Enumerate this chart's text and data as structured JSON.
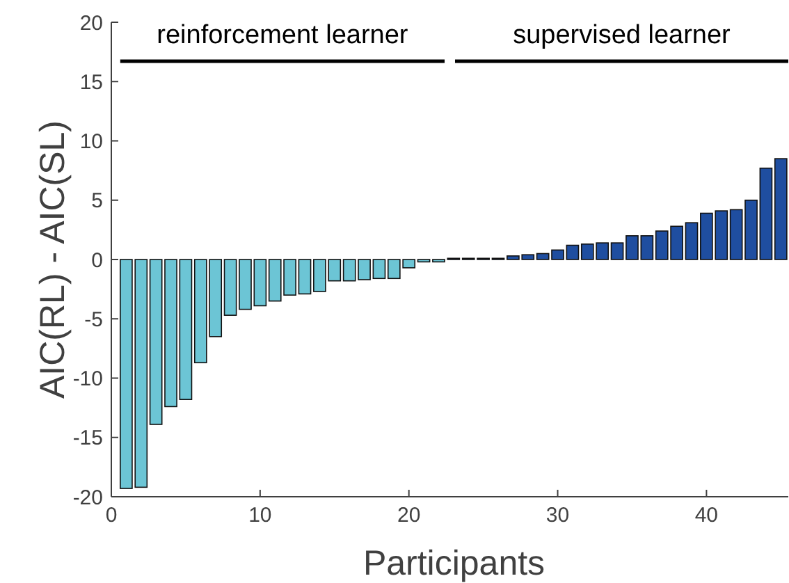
{
  "chart_data": {
    "type": "bar",
    "xlabel": "Participants",
    "ylabel": "AIC(RL) - AIC(SL)",
    "x": [
      1,
      2,
      3,
      4,
      5,
      6,
      7,
      8,
      9,
      10,
      11,
      12,
      13,
      14,
      15,
      16,
      17,
      18,
      19,
      20,
      21,
      22,
      23,
      24,
      25,
      26,
      27,
      28,
      29,
      30,
      31,
      32,
      33,
      34,
      35,
      36,
      37,
      38,
      39,
      40,
      41,
      42,
      43,
      44,
      45
    ],
    "values": [
      -19.3,
      -19.2,
      -13.9,
      -12.4,
      -11.8,
      -8.7,
      -6.5,
      -4.7,
      -4.2,
      -3.9,
      -3.5,
      -3.0,
      -2.9,
      -2.7,
      -1.8,
      -1.8,
      -1.7,
      -1.6,
      -1.6,
      -0.7,
      -0.2,
      -0.2,
      0.1,
      0.1,
      0.1,
      0.1,
      0.3,
      0.4,
      0.5,
      0.8,
      1.2,
      1.3,
      1.4,
      1.4,
      2.0,
      2.0,
      2.4,
      2.8,
      3.1,
      3.9,
      4.1,
      4.2,
      5.0,
      7.7,
      8.5
    ],
    "colors": [
      "#6cc5d5",
      "#6cc5d5",
      "#6cc5d5",
      "#6cc5d5",
      "#6cc5d5",
      "#6cc5d5",
      "#6cc5d5",
      "#6cc5d5",
      "#6cc5d5",
      "#6cc5d5",
      "#6cc5d5",
      "#6cc5d5",
      "#6cc5d5",
      "#6cc5d5",
      "#6cc5d5",
      "#6cc5d5",
      "#6cc5d5",
      "#6cc5d5",
      "#6cc5d5",
      "#6cc5d5",
      "#6cc5d5",
      "#6cc5d5",
      "#1f4ea0",
      "#1f4ea0",
      "#1f4ea0",
      "#1f4ea0",
      "#1f4ea0",
      "#1f4ea0",
      "#1f4ea0",
      "#1f4ea0",
      "#1f4ea0",
      "#1f4ea0",
      "#1f4ea0",
      "#1f4ea0",
      "#1f4ea0",
      "#1f4ea0",
      "#1f4ea0",
      "#1f4ea0",
      "#1f4ea0",
      "#1f4ea0",
      "#1f4ea0",
      "#1f4ea0",
      "#1f4ea0",
      "#1f4ea0",
      "#1f4ea0"
    ],
    "xlim": [
      0,
      45.5
    ],
    "xticks": [
      0,
      10,
      20,
      30,
      40
    ],
    "ylim": [
      -20,
      20
    ],
    "yticks": [
      -20,
      -15,
      -10,
      -5,
      0,
      5,
      10,
      15,
      20
    ],
    "annotations": [
      "reinforcement learner",
      "supervised learner"
    ],
    "grid": false
  }
}
